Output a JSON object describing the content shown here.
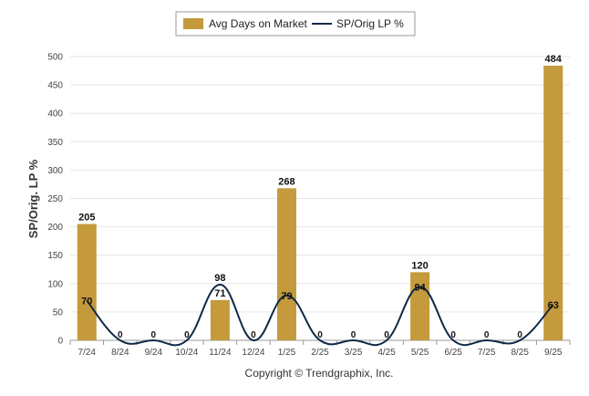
{
  "chart_data": {
    "type": "bar",
    "categories": [
      "7/24",
      "8/24",
      "9/24",
      "10/24",
      "11/24",
      "12/24",
      "1/25",
      "2/25",
      "3/25",
      "4/25",
      "5/25",
      "6/25",
      "7/25",
      "8/25",
      "9/25"
    ],
    "series": [
      {
        "name": "Avg Days on Market",
        "type": "bar",
        "color": "#c49a3c",
        "values": [
          205,
          0,
          0,
          0,
          71,
          0,
          268,
          0,
          0,
          0,
          120,
          0,
          0,
          0,
          484
        ]
      },
      {
        "name": "SP/Orig LP %",
        "type": "line",
        "color": "#0f2a47",
        "values": [
          70,
          0,
          0,
          0,
          98,
          0,
          79,
          0,
          0,
          0,
          94,
          0,
          0,
          0,
          63
        ]
      }
    ],
    "xlabel": "",
    "ylabel": "SP/Orig. LP %",
    "ylim": [
      0,
      500
    ],
    "yticks": [
      0,
      50,
      100,
      150,
      200,
      250,
      300,
      350,
      400,
      450,
      500
    ],
    "grid": true,
    "legend_position": "top-center",
    "copyright": "Copyright © Trendgraphix, Inc."
  }
}
